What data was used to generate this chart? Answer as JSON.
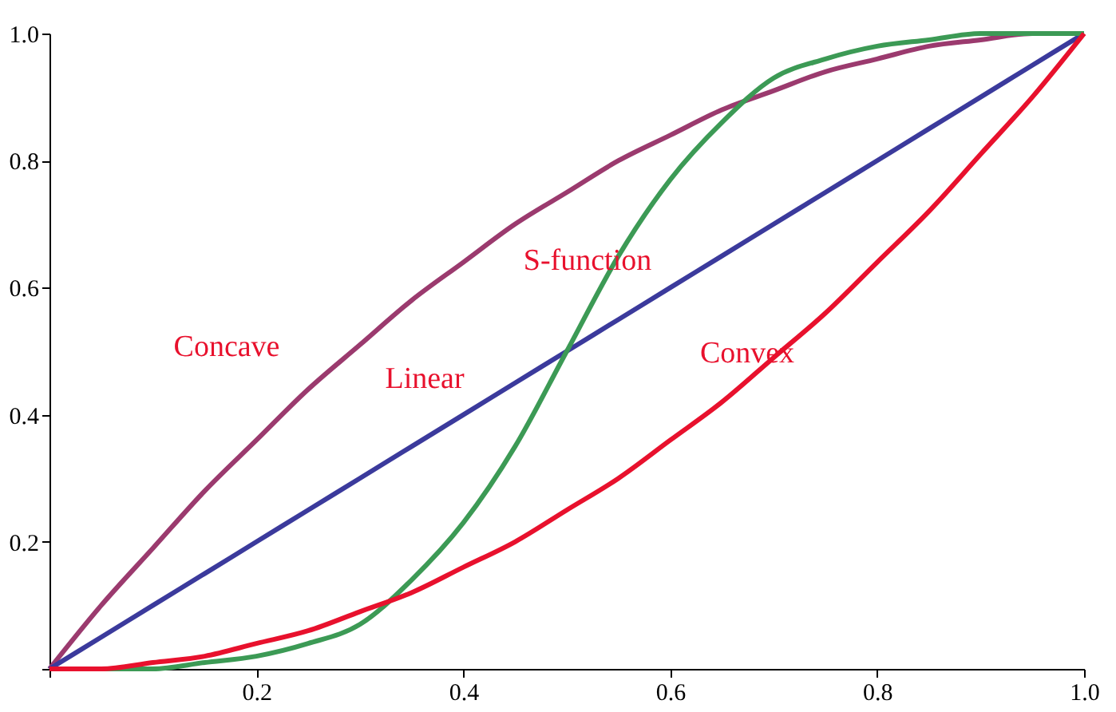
{
  "chart_data": {
    "type": "line",
    "x": [
      0,
      0.05,
      0.1,
      0.15,
      0.2,
      0.25,
      0.3,
      0.35,
      0.4,
      0.45,
      0.5,
      0.55,
      0.6,
      0.65,
      0.7,
      0.75,
      0.8,
      0.85,
      0.9,
      0.95,
      1
    ],
    "series": [
      {
        "name": "Concave",
        "color": "#9b3a6e",
        "values": [
          0,
          0.1,
          0.19,
          0.28,
          0.36,
          0.44,
          0.51,
          0.58,
          0.64,
          0.7,
          0.75,
          0.8,
          0.84,
          0.88,
          0.91,
          0.94,
          0.96,
          0.98,
          0.99,
          1,
          1
        ]
      },
      {
        "name": "Linear",
        "color": "#3b3a9c",
        "values": [
          0,
          0.05,
          0.1,
          0.15,
          0.2,
          0.25,
          0.3,
          0.35,
          0.4,
          0.45,
          0.5,
          0.55,
          0.6,
          0.65,
          0.7,
          0.75,
          0.8,
          0.85,
          0.9,
          0.95,
          1
        ]
      },
      {
        "name": "S-function",
        "color": "#3c9a55",
        "values": [
          0,
          0,
          0,
          0.01,
          0.02,
          0.04,
          0.07,
          0.14,
          0.23,
          0.35,
          0.5,
          0.65,
          0.77,
          0.86,
          0.93,
          0.96,
          0.98,
          0.99,
          1,
          1,
          1
        ]
      },
      {
        "name": "Convex",
        "color": "#e8112d",
        "values": [
          0,
          0,
          0.01,
          0.02,
          0.04,
          0.06,
          0.09,
          0.12,
          0.16,
          0.2,
          0.25,
          0.3,
          0.36,
          0.42,
          0.49,
          0.56,
          0.64,
          0.72,
          0.81,
          0.9,
          1
        ]
      }
    ],
    "xlim": [
      0,
      1
    ],
    "ylim": [
      0,
      1
    ],
    "xticks": [
      {
        "value": 0,
        "label": null
      },
      0.2,
      0.4,
      0.6,
      0.8,
      {
        "value": 1,
        "label": "1.0"
      }
    ],
    "yticks": [
      {
        "value": 0,
        "label": null
      },
      0.2,
      0.4,
      0.6,
      0.8,
      {
        "value": 1,
        "label": "1.0"
      }
    ],
    "grid": false,
    "legend": false,
    "marker": "none",
    "line_style": "solid"
  }
}
